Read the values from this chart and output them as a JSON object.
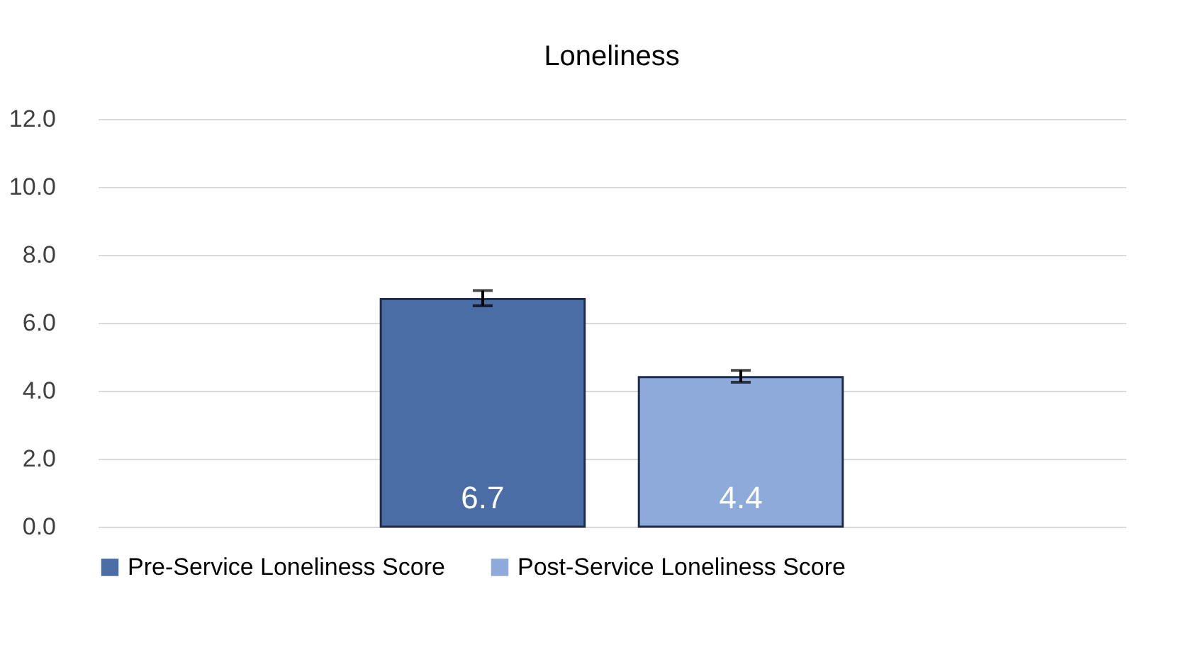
{
  "chart_data": {
    "type": "bar",
    "title": "Loneliness",
    "categories": [
      null
    ],
    "series": [
      {
        "name": "Pre-Service Loneliness Score",
        "color": "#4a6da6",
        "values": [
          6.7
        ],
        "errors": [
          [
            6.5,
            6.95
          ]
        ]
      },
      {
        "name": "Post-Service Loneliness Score",
        "color": "#8eaadb",
        "values": [
          4.4
        ],
        "errors": [
          [
            4.25,
            4.6
          ]
        ]
      }
    ],
    "ylim": [
      0,
      12
    ],
    "yticks": [
      {
        "value": 0,
        "label": "0.0"
      },
      {
        "value": 2,
        "label": "2.0"
      },
      {
        "value": 4,
        "label": "4.0"
      },
      {
        "value": 6,
        "label": "6.0"
      },
      {
        "value": 8,
        "label": "8.0"
      },
      {
        "value": 10,
        "label": "10.0"
      },
      {
        "value": 12,
        "label": "12.0"
      }
    ],
    "data_labels": true,
    "grid": "y",
    "legend": "bottom",
    "tick_labels": "y"
  }
}
